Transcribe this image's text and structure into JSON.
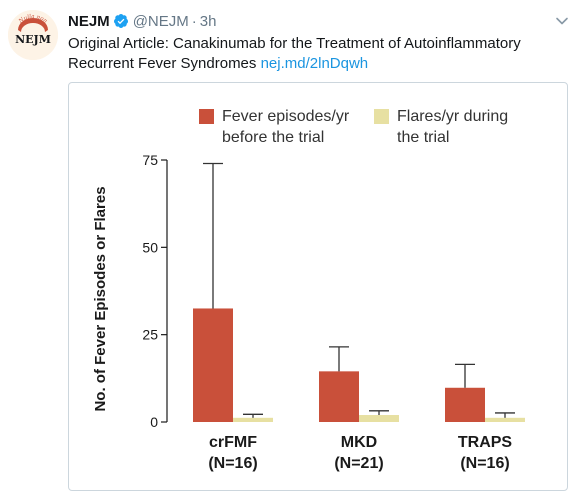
{
  "tweet": {
    "author": "NEJM",
    "handle": "@NEJM",
    "separator": "·",
    "time": "3h",
    "text": "Original Article: Canakinumab for the Treatment of Autoinflammatory Recurrent Fever Syndromes",
    "link": "nej.md/2lnDqwh"
  },
  "logo": {
    "title": "NEJM",
    "ring_text": "Nulla non"
  },
  "icons": {
    "verified": "verified-badge-icon",
    "menu": "chevron-down-icon"
  },
  "colors": {
    "fever": "#c9503a",
    "flares": "#e7e0a2",
    "link": "#1b95e0",
    "verified": "#1da1f2"
  },
  "chart_data": {
    "type": "bar",
    "ylabel": "No. of Fever Episodes or Flares",
    "ylim": [
      0,
      75
    ],
    "yticks": [
      0,
      25,
      50,
      75
    ],
    "categories": [
      {
        "name": "crFMF",
        "n": "(N=16)"
      },
      {
        "name": "MKD",
        "n": "(N=21)"
      },
      {
        "name": "TRAPS",
        "n": "(N=16)"
      }
    ],
    "series": [
      {
        "name": "Fever episodes/yr before the trial",
        "legend_lines": [
          "Fever episodes/yr",
          "before the trial"
        ],
        "color": "#c9503a",
        "values": [
          32.5,
          14.5,
          9.8
        ],
        "error_upper": [
          74,
          21.5,
          16.5
        ]
      },
      {
        "name": "Flares/yr during the trial",
        "legend_lines": [
          "Flares/yr during",
          "the trial"
        ],
        "color": "#e7e0a2",
        "values": [
          1.2,
          2.0,
          1.2
        ],
        "error_upper": [
          2.2,
          3.2,
          2.6
        ]
      }
    ],
    "legend_position": "top",
    "grid": false
  }
}
